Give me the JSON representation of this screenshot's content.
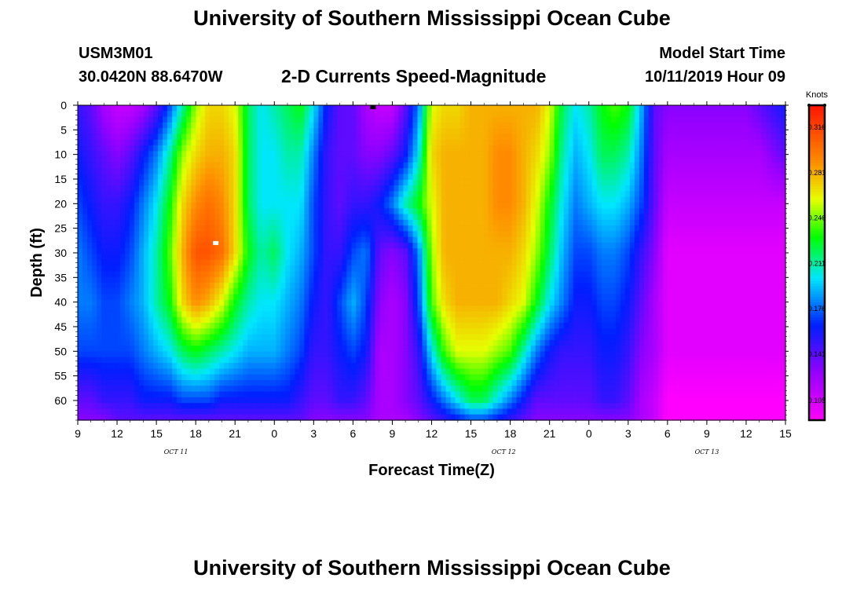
{
  "header": {
    "title": "University of Southern Mississippi Ocean Cube",
    "station_id": "USM3M01",
    "station_coords": "30.0420N 88.6470W",
    "chart_title": "2-D Currents Speed-Magnitude",
    "model_start_label": "Model Start Time",
    "model_start_value": "10/11/2019 Hour 09"
  },
  "footer": {
    "title": "University of Southern Mississippi Ocean Cube"
  },
  "chart_data": {
    "type": "heatmap",
    "title": "2-D Currents Speed-Magnitude",
    "xlabel": "Forecast Time(Z)",
    "ylabel": "Depth (ft)",
    "x_tick_labels": [
      "9",
      "12",
      "15",
      "18",
      "21",
      "0",
      "3",
      "6",
      "9",
      "12",
      "15",
      "18",
      "21",
      "0",
      "3",
      "6",
      "9",
      "12",
      "15"
    ],
    "x_date_labels": [
      "OCT 11",
      "OCT 12",
      "OCT 13"
    ],
    "y_tick_labels": [
      "0",
      "5",
      "10",
      "15",
      "20",
      "25",
      "30",
      "35",
      "40",
      "45",
      "50",
      "55",
      "60"
    ],
    "x_range_hours": [
      0,
      54
    ],
    "y_range_ft": [
      0,
      64
    ],
    "y_inverted": true,
    "colorbar": {
      "unit": "Knots",
      "tick_labels": [
        "0.316",
        "0.281",
        "0.246",
        "0.211",
        "0.176",
        "0.141",
        "0.105"
      ],
      "range": [
        0.09,
        0.333
      ]
    },
    "colors": {
      "low": "#ff00ff",
      "mid": "#00ff00",
      "high": "#ff0000"
    },
    "depths_ft": [
      0,
      10,
      20,
      30,
      40,
      50,
      60,
      64
    ],
    "times_h": [
      0,
      1,
      2,
      3,
      4,
      5,
      6,
      7,
      8,
      9,
      10,
      11,
      12,
      13,
      14,
      15,
      16,
      17,
      18,
      19,
      20,
      21,
      22,
      23,
      24,
      25,
      26,
      27,
      28,
      29,
      30,
      31,
      32,
      33,
      34,
      35,
      36,
      37,
      38,
      39,
      40,
      41,
      42,
      43,
      44,
      45,
      46,
      47,
      48,
      49,
      50,
      51,
      52,
      53,
      54
    ],
    "speed_knots_rows": [
      [
        0.15,
        0.14,
        0.12,
        0.11,
        0.11,
        0.12,
        0.14,
        0.17,
        0.21,
        0.25,
        0.27,
        0.27,
        0.26,
        0.22,
        0.2,
        0.21,
        0.22,
        0.23,
        0.2,
        0.16,
        0.14,
        0.14,
        0.12,
        0.11,
        0.11,
        0.14,
        0.18,
        0.26,
        0.27,
        0.27,
        0.28,
        0.28,
        0.28,
        0.28,
        0.28,
        0.28,
        0.26,
        0.22,
        0.2,
        0.21,
        0.23,
        0.24,
        0.23,
        0.19,
        0.14,
        0.13,
        0.13,
        0.13,
        0.13,
        0.13,
        0.13,
        0.13,
        0.14,
        0.15,
        0.16
      ],
      [
        0.16,
        0.15,
        0.14,
        0.13,
        0.14,
        0.16,
        0.18,
        0.21,
        0.25,
        0.27,
        0.28,
        0.28,
        0.27,
        0.22,
        0.2,
        0.2,
        0.21,
        0.21,
        0.18,
        0.15,
        0.14,
        0.14,
        0.13,
        0.13,
        0.14,
        0.16,
        0.2,
        0.27,
        0.28,
        0.28,
        0.28,
        0.28,
        0.29,
        0.29,
        0.28,
        0.27,
        0.25,
        0.21,
        0.19,
        0.2,
        0.22,
        0.22,
        0.21,
        0.18,
        0.14,
        0.12,
        0.12,
        0.12,
        0.12,
        0.12,
        0.12,
        0.12,
        0.12,
        0.13,
        0.14
      ],
      [
        0.17,
        0.16,
        0.15,
        0.15,
        0.16,
        0.18,
        0.2,
        0.23,
        0.27,
        0.29,
        0.3,
        0.29,
        0.27,
        0.22,
        0.2,
        0.2,
        0.2,
        0.2,
        0.17,
        0.15,
        0.14,
        0.15,
        0.15,
        0.16,
        0.18,
        0.21,
        0.23,
        0.26,
        0.28,
        0.28,
        0.28,
        0.28,
        0.29,
        0.29,
        0.28,
        0.26,
        0.23,
        0.2,
        0.18,
        0.19,
        0.2,
        0.2,
        0.19,
        0.17,
        0.14,
        0.11,
        0.11,
        0.11,
        0.11,
        0.11,
        0.11,
        0.11,
        0.11,
        0.11,
        0.11
      ],
      [
        0.18,
        0.17,
        0.16,
        0.16,
        0.17,
        0.19,
        0.21,
        0.24,
        0.28,
        0.31,
        0.31,
        0.3,
        0.27,
        0.23,
        0.21,
        0.22,
        0.2,
        0.19,
        0.17,
        0.15,
        0.15,
        0.17,
        0.18,
        0.14,
        0.13,
        0.14,
        0.18,
        0.25,
        0.28,
        0.28,
        0.28,
        0.28,
        0.28,
        0.28,
        0.27,
        0.25,
        0.22,
        0.19,
        0.17,
        0.17,
        0.18,
        0.18,
        0.17,
        0.15,
        0.13,
        0.1,
        0.1,
        0.1,
        0.1,
        0.1,
        0.1,
        0.1,
        0.1,
        0.1,
        0.1
      ],
      [
        0.18,
        0.18,
        0.17,
        0.17,
        0.18,
        0.19,
        0.21,
        0.23,
        0.27,
        0.29,
        0.28,
        0.26,
        0.23,
        0.21,
        0.2,
        0.2,
        0.19,
        0.18,
        0.16,
        0.15,
        0.17,
        0.19,
        0.17,
        0.13,
        0.12,
        0.13,
        0.17,
        0.24,
        0.27,
        0.28,
        0.28,
        0.28,
        0.28,
        0.27,
        0.26,
        0.23,
        0.2,
        0.18,
        0.16,
        0.16,
        0.17,
        0.17,
        0.16,
        0.14,
        0.12,
        0.1,
        0.1,
        0.1,
        0.1,
        0.1,
        0.1,
        0.1,
        0.1,
        0.1,
        0.1
      ],
      [
        0.17,
        0.17,
        0.17,
        0.17,
        0.17,
        0.18,
        0.19,
        0.2,
        0.22,
        0.23,
        0.22,
        0.21,
        0.2,
        0.19,
        0.19,
        0.19,
        0.18,
        0.17,
        0.15,
        0.15,
        0.16,
        0.17,
        0.16,
        0.12,
        0.12,
        0.13,
        0.15,
        0.2,
        0.24,
        0.26,
        0.26,
        0.26,
        0.25,
        0.24,
        0.21,
        0.18,
        0.16,
        0.15,
        0.15,
        0.15,
        0.16,
        0.16,
        0.15,
        0.13,
        0.12,
        0.1,
        0.1,
        0.1,
        0.1,
        0.1,
        0.1,
        0.1,
        0.1,
        0.1,
        0.1
      ],
      [
        0.14,
        0.14,
        0.15,
        0.15,
        0.15,
        0.16,
        0.16,
        0.16,
        0.17,
        0.17,
        0.17,
        0.16,
        0.16,
        0.16,
        0.16,
        0.16,
        0.16,
        0.15,
        0.14,
        0.14,
        0.15,
        0.15,
        0.14,
        0.12,
        0.12,
        0.13,
        0.14,
        0.16,
        0.18,
        0.2,
        0.22,
        0.22,
        0.2,
        0.18,
        0.16,
        0.14,
        0.14,
        0.14,
        0.14,
        0.14,
        0.15,
        0.15,
        0.14,
        0.12,
        0.11,
        0.09,
        0.09,
        0.09,
        0.09,
        0.09,
        0.09,
        0.09,
        0.09,
        0.09,
        0.09
      ],
      [
        0.13,
        0.13,
        0.13,
        0.14,
        0.14,
        0.14,
        0.14,
        0.14,
        0.14,
        0.14,
        0.14,
        0.14,
        0.14,
        0.14,
        0.14,
        0.14,
        0.14,
        0.14,
        0.13,
        0.13,
        0.13,
        0.13,
        0.13,
        0.12,
        0.12,
        0.12,
        0.13,
        0.14,
        0.15,
        0.16,
        0.17,
        0.17,
        0.16,
        0.15,
        0.14,
        0.13,
        0.13,
        0.13,
        0.13,
        0.13,
        0.13,
        0.13,
        0.13,
        0.12,
        0.11,
        0.09,
        0.09,
        0.09,
        0.09,
        0.09,
        0.09,
        0.09,
        0.09,
        0.09,
        0.09
      ]
    ],
    "markers": [
      {
        "time_h": 10.5,
        "depth_ft": 28,
        "color": "#ffffff"
      },
      {
        "time_h": 22.5,
        "depth_ft": 0,
        "color": "#000000"
      }
    ]
  }
}
